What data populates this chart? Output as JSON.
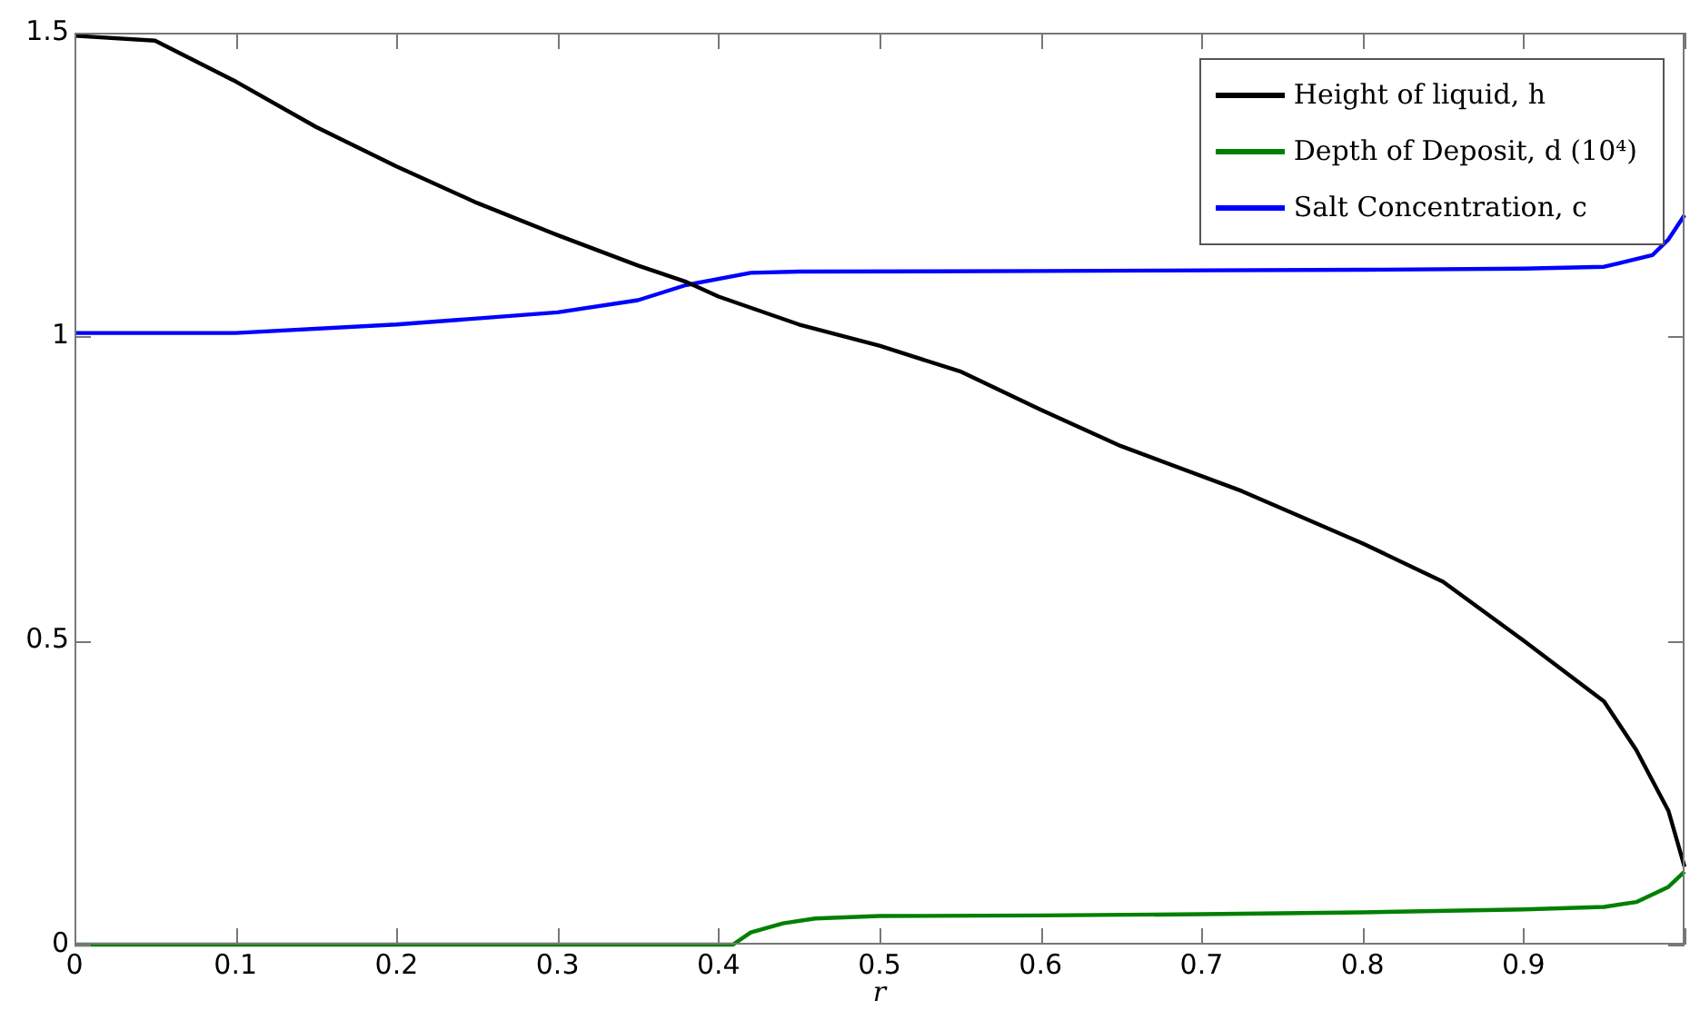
{
  "chart_data": {
    "type": "line",
    "xlabel": "r",
    "xlim": [
      0,
      1
    ],
    "ylim": [
      0,
      1.5
    ],
    "xticks": [
      0,
      0.1,
      0.2,
      0.3,
      0.4,
      0.5,
      0.6,
      0.7,
      0.8,
      0.9,
      {
        "value": 1,
        "label": null
      }
    ],
    "yticks": [
      0,
      0.5,
      1,
      1.5
    ],
    "grid": false,
    "legend": "top right",
    "marker": "none",
    "line_style": "solid",
    "series": [
      {
        "name": "Height of liquid, h",
        "color": "#000000",
        "x": [
          0,
          0.05,
          0.1,
          0.15,
          0.2,
          0.25,
          0.3,
          0.35,
          0.38,
          0.4,
          0.45,
          0.5,
          0.55,
          0.6,
          0.65,
          0.725,
          0.8,
          0.85,
          0.9,
          0.95,
          0.97,
          0.99,
          1
        ],
        "values": [
          1.495,
          1.487,
          1.42,
          1.345,
          1.28,
          1.22,
          1.167,
          1.117,
          1.09,
          1.066,
          1.02,
          0.985,
          0.943,
          0.88,
          0.82,
          0.746,
          0.66,
          0.597,
          0.5,
          0.4,
          0.32,
          0.22,
          0.128
        ]
      },
      {
        "name": "Depth of Deposit, d (10⁴)",
        "color": "#008000",
        "x": [
          0,
          0.409,
          0.42,
          0.44,
          0.46,
          0.5,
          0.6,
          0.7,
          0.8,
          0.9,
          0.95,
          0.97,
          0.99,
          1
        ],
        "values": [
          0,
          0,
          0.02,
          0.035,
          0.043,
          0.047,
          0.048,
          0.05,
          0.053,
          0.058,
          0.062,
          0.07,
          0.095,
          0.12
        ]
      },
      {
        "name": "Salt Concentration, c",
        "color": "#0000ff",
        "x": [
          0,
          0.1,
          0.2,
          0.25,
          0.3,
          0.35,
          0.38,
          0.42,
          0.45,
          0.6,
          0.8,
          0.9,
          0.95,
          0.98,
          0.99,
          1
        ],
        "values": [
          1.006,
          1.006,
          1.02,
          1.03,
          1.04,
          1.06,
          1.085,
          1.105,
          1.107,
          1.108,
          1.11,
          1.112,
          1.115,
          1.134,
          1.16,
          1.2
        ]
      }
    ]
  }
}
